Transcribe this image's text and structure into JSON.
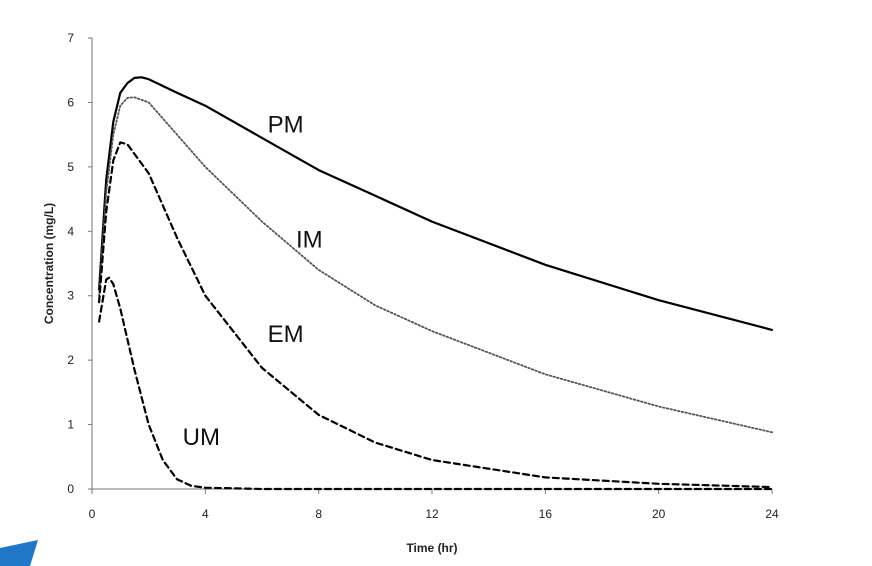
{
  "chart_data": {
    "type": "line",
    "xlabel": "Time (hr)",
    "ylabel": "Concentration (mg/L)",
    "xlim": [
      0,
      24
    ],
    "ylim": [
      0,
      7
    ],
    "x_ticks": [
      0,
      4,
      8,
      12,
      16,
      20,
      24
    ],
    "y_ticks": [
      0,
      1,
      2,
      3,
      4,
      5,
      6,
      7
    ],
    "grid": false,
    "legend": "none",
    "series": [
      {
        "name": "PM",
        "style": "solid",
        "color": "#000000",
        "points": [
          [
            0.25,
            3.1
          ],
          [
            0.5,
            4.8
          ],
          [
            0.75,
            5.7
          ],
          [
            1.0,
            6.15
          ],
          [
            1.25,
            6.3
          ],
          [
            1.5,
            6.38
          ],
          [
            1.75,
            6.39
          ],
          [
            2,
            6.36
          ],
          [
            3,
            6.15
          ],
          [
            4,
            5.95
          ],
          [
            6,
            5.45
          ],
          [
            8,
            4.95
          ],
          [
            10,
            4.55
          ],
          [
            12,
            4.15
          ],
          [
            16,
            3.48
          ],
          [
            20,
            2.93
          ],
          [
            24,
            2.47
          ]
        ]
      },
      {
        "name": "IM",
        "style": "dotted",
        "color": "#555555",
        "points": [
          [
            0.25,
            3.0
          ],
          [
            0.5,
            4.6
          ],
          [
            0.75,
            5.5
          ],
          [
            1.0,
            5.95
          ],
          [
            1.25,
            6.07
          ],
          [
            1.5,
            6.08
          ],
          [
            2,
            6.0
          ],
          [
            3,
            5.5
          ],
          [
            4,
            5.0
          ],
          [
            6,
            4.15
          ],
          [
            8,
            3.4
          ],
          [
            10,
            2.85
          ],
          [
            12,
            2.45
          ],
          [
            16,
            1.78
          ],
          [
            20,
            1.28
          ],
          [
            24,
            0.88
          ]
        ]
      },
      {
        "name": "EM",
        "style": "dashed",
        "color": "#000000",
        "points": [
          [
            0.25,
            2.9
          ],
          [
            0.5,
            4.3
          ],
          [
            0.75,
            5.1
          ],
          [
            1.0,
            5.38
          ],
          [
            1.25,
            5.35
          ],
          [
            1.5,
            5.2
          ],
          [
            2,
            4.9
          ],
          [
            3,
            3.9
          ],
          [
            4,
            3.0
          ],
          [
            6,
            1.88
          ],
          [
            8,
            1.15
          ],
          [
            10,
            0.72
          ],
          [
            12,
            0.45
          ],
          [
            16,
            0.18
          ],
          [
            20,
            0.08
          ],
          [
            24,
            0.03
          ]
        ]
      },
      {
        "name": "UM",
        "style": "dashed",
        "color": "#000000",
        "points": [
          [
            0.25,
            2.6
          ],
          [
            0.5,
            3.25
          ],
          [
            0.6,
            3.28
          ],
          [
            0.75,
            3.18
          ],
          [
            1.0,
            2.8
          ],
          [
            1.5,
            1.85
          ],
          [
            2,
            1.0
          ],
          [
            2.5,
            0.45
          ],
          [
            3,
            0.15
          ],
          [
            3.5,
            0.05
          ],
          [
            4,
            0.02
          ],
          [
            6,
            0.0
          ],
          [
            12,
            0.0
          ],
          [
            24,
            0.0
          ]
        ]
      }
    ],
    "annotations": [
      {
        "text": "PM",
        "x": 6.2,
        "y": 5.53
      },
      {
        "text": "IM",
        "x": 7.2,
        "y": 3.75
      },
      {
        "text": "EM",
        "x": 6.2,
        "y": 2.28
      },
      {
        "text": "UM",
        "x": 3.2,
        "y": 0.68
      }
    ]
  }
}
